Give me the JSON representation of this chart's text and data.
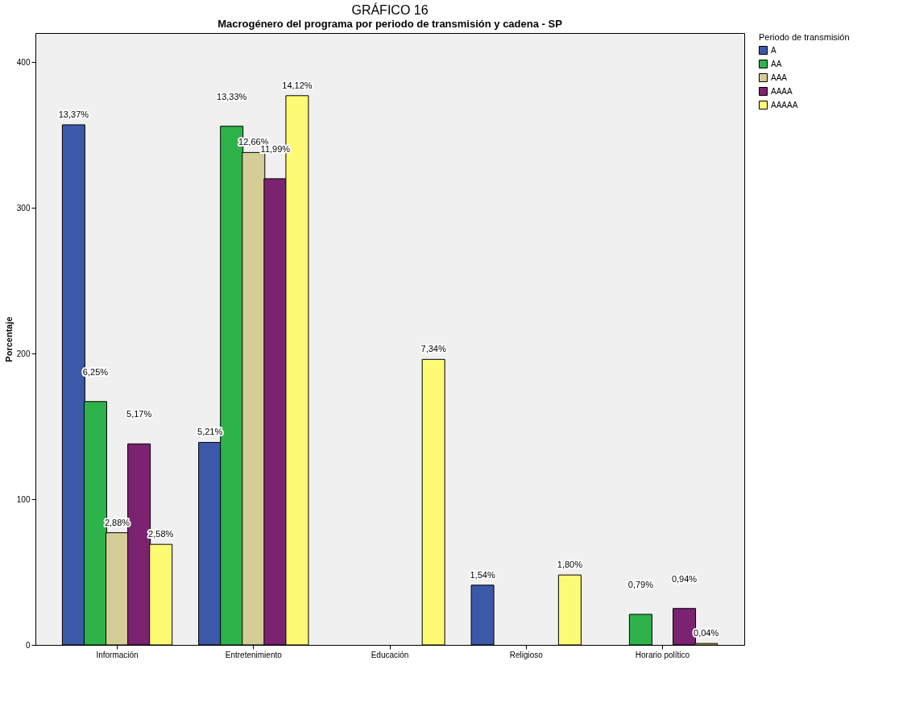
{
  "chart_data": {
    "type": "bar",
    "title": "GRÁFICO 16",
    "subtitle": "Macrogénero del programa  por periodo de transmisión y cadena - SP",
    "ylabel": "Porcentaje",
    "legend_title": "Periodo de transmisión",
    "legend": "top right",
    "grid": false,
    "categories": [
      "Información",
      "Entretenimiento",
      "Educación",
      "Religioso",
      "Horario político"
    ],
    "ylim": [
      0,
      420
    ],
    "yticks": [
      0,
      100,
      200,
      300,
      400
    ],
    "series": [
      {
        "name": "A",
        "color": "#3c58a8",
        "values": [
          357,
          139,
          null,
          41,
          null
        ]
      },
      {
        "name": "AA",
        "color": "#2db34a",
        "values": [
          167,
          356,
          null,
          null,
          21
        ]
      },
      {
        "name": "AAA",
        "color": "#d4cd96",
        "values": [
          77,
          338,
          null,
          null,
          null
        ]
      },
      {
        "name": "AAAA",
        "color": "#7b2271",
        "values": [
          138,
          320,
          null,
          null,
          25
        ]
      },
      {
        "name": "AAAAA",
        "color": "#fdfb74",
        "values": [
          69,
          377,
          196,
          48,
          1
        ]
      }
    ],
    "annotations": [
      "13,37%",
      "5,21%",
      "1,54%",
      "6,25%",
      "13,33%",
      "0,79%",
      "2,88%",
      "12,66%",
      "5,17%",
      "11,99%",
      "0,94%",
      "2,58%",
      "14,12%",
      "7,34%",
      "1,80%",
      "0,04%"
    ]
  }
}
